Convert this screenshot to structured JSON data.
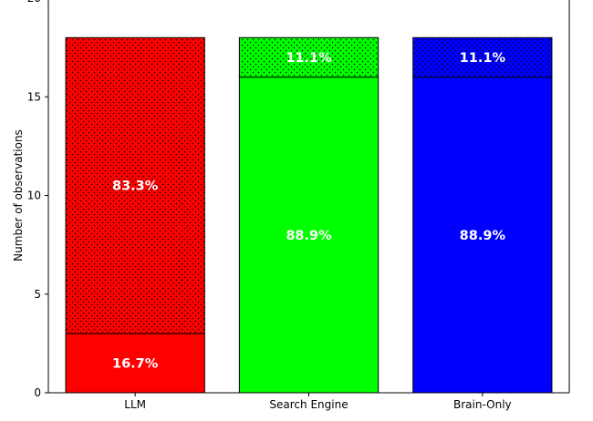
{
  "chart_data": {
    "type": "bar",
    "stacked": true,
    "categories": [
      "LLM",
      "Search Engine",
      "Brain-Only"
    ],
    "ylabel": "Number of observations",
    "xlabel": "",
    "ylim": [
      0,
      20
    ],
    "yticks": [
      0,
      5,
      10,
      15,
      20
    ],
    "grid": false,
    "series": [
      {
        "values": [
          3,
          16,
          16
        ],
        "labels": [
          "16.7%",
          "88.9%",
          "88.9%"
        ],
        "hatch": "none"
      },
      {
        "values": [
          15,
          2,
          2
        ],
        "labels": [
          "83.3%",
          "11.1%",
          "11.1%"
        ],
        "hatch": "dots"
      }
    ],
    "bar_colors": [
      "#ff0000",
      "#00ff00",
      "#0000ff"
    ]
  }
}
